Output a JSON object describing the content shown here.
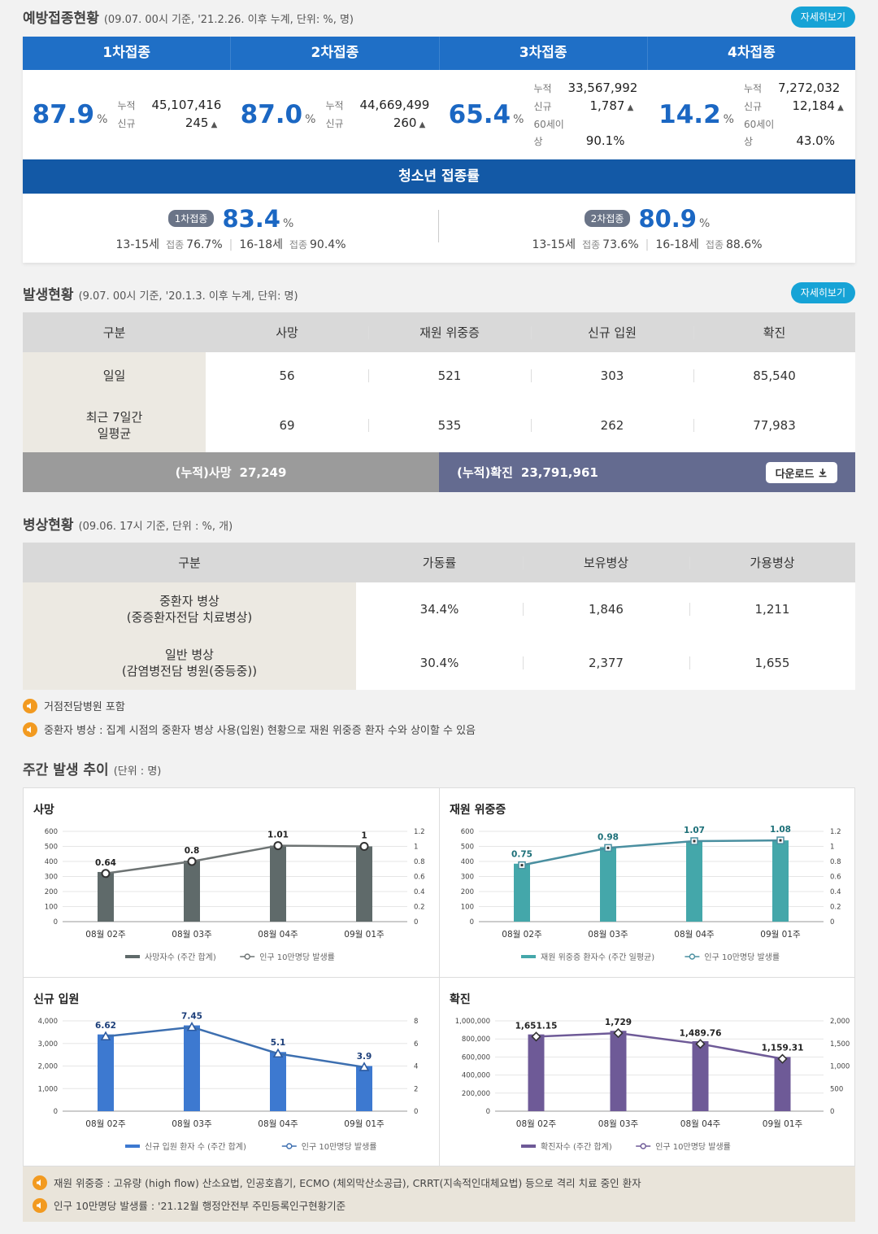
{
  "vaccination": {
    "title": "예방접종현황",
    "subtitle": "(09.07. 00시 기준, '21.2.26. 이후 누계, 단위: %, 명)",
    "detail_label": "자세히보기",
    "doses": [
      {
        "tab": "1차접종",
        "rate": "87.9",
        "unit": "%",
        "stats": [
          {
            "label": "누적",
            "value": "45,107,416",
            "up": false
          },
          {
            "label": "신규",
            "value": "245",
            "up": true
          }
        ]
      },
      {
        "tab": "2차접종",
        "rate": "87.0",
        "unit": "%",
        "stats": [
          {
            "label": "누적",
            "value": "44,669,499",
            "up": false
          },
          {
            "label": "신규",
            "value": "260",
            "up": true
          }
        ]
      },
      {
        "tab": "3차접종",
        "rate": "65.4",
        "unit": "%",
        "stats": [
          {
            "label": "누적",
            "value": "33,567,992",
            "up": false
          },
          {
            "label": "신규",
            "value": "1,787",
            "up": true
          },
          {
            "label": "60세이상",
            "value": "90.1%",
            "up": false
          }
        ]
      },
      {
        "tab": "4차접종",
        "rate": "14.2",
        "unit": "%",
        "stats": [
          {
            "label": "누적",
            "value": "7,272,032",
            "up": false
          },
          {
            "label": "신규",
            "value": "12,184",
            "up": true
          },
          {
            "label": "60세이상",
            "value": "43.0%",
            "up": false
          }
        ]
      }
    ],
    "teen": {
      "title": "청소년 접종률",
      "items": [
        {
          "pill": "1차접종",
          "rate": "83.4",
          "unit": "%",
          "a_age": "13-15세",
          "a_lbl": "접종",
          "a_val": "76.7%",
          "b_age": "16-18세",
          "b_lbl": "접종",
          "b_val": "90.4%"
        },
        {
          "pill": "2차접종",
          "rate": "80.9",
          "unit": "%",
          "a_age": "13-15세",
          "a_lbl": "접종",
          "a_val": "73.6%",
          "b_age": "16-18세",
          "b_lbl": "접종",
          "b_val": "88.6%"
        }
      ]
    }
  },
  "occurrence": {
    "title": "발생현황",
    "subtitle": "(9.07. 00시 기준, '20.1.3. 이후 누계, 단위: 명)",
    "detail_label": "자세히보기",
    "headers": [
      "구분",
      "사망",
      "재원 위중증",
      "신규 입원",
      "확진"
    ],
    "rows": [
      {
        "label": "일일",
        "cells": [
          "56",
          "521",
          "303",
          "85,540"
        ]
      },
      {
        "label": "최근 7일간\n일평균",
        "cells": [
          "69",
          "535",
          "262",
          "77,983"
        ]
      }
    ],
    "cum_death_label": "(누적)사망",
    "cum_death_value": "27,249",
    "cum_conf_label": "(누적)확진",
    "cum_conf_value": "23,791,961",
    "download_label": "다운로드"
  },
  "beds": {
    "title": "병상현황",
    "subtitle": "(09.06. 17시 기준, 단위 : %, 개)",
    "headers": [
      "구분",
      "가동률",
      "보유병상",
      "가용병상"
    ],
    "rows": [
      {
        "label": "중환자 병상\n(중증환자전담 치료병상)",
        "cells": [
          "34.4%",
          "1,846",
          "1,211"
        ]
      },
      {
        "label": "일반 병상\n(감염병전담 병원(중등중))",
        "cells": [
          "30.4%",
          "2,377",
          "1,655"
        ]
      }
    ],
    "notes": [
      "거점전담병원 포함",
      "중환자 병상 : 집계 시점의 중환자 병상 사용(입원) 현황으로 재원 위중증 환자 수와 상이할 수 있음"
    ]
  },
  "weekly": {
    "title": "주간 발생 추이",
    "subtitle": "(단위 : 명)",
    "footnotes": [
      "재원 위중증 : 고유량 (high flow) 산소요법, 인공호흡기, ECMO (체외막산소공급), CRRT(지속적인대체요법) 등으로 격리 치료 중인 환자",
      "인구 10만명당 발생률 : '21.12월 행정안전부 주민등록인구현황기준"
    ]
  },
  "chart_data": [
    {
      "type": "bar",
      "title": "사망",
      "categories": [
        "08월 02주",
        "08월 03주",
        "08월 04주",
        "09월 01주"
      ],
      "series": [
        {
          "name": "사망자수 (주간 합계)",
          "values": [
            330,
            405,
            505,
            500
          ]
        },
        {
          "name": "인구 10만명당 발생률",
          "values": [
            0.64,
            0.8,
            1.01,
            1
          ]
        }
      ],
      "y_ticks": [
        "600",
        "500",
        "400",
        "300",
        "200",
        "100",
        "0"
      ],
      "y2_ticks": [
        "1.2",
        "1",
        "0.8",
        "0.6",
        "0.4",
        "0.2",
        "0"
      ],
      "ylim": [
        0,
        600
      ],
      "y2lim": [
        0,
        1.2
      ],
      "bar_color": "#5f6a6a",
      "line_color": "#6d7373",
      "label_color": "#222",
      "marker": "circle"
    },
    {
      "type": "bar",
      "title": "재원 위중증",
      "categories": [
        "08월 02주",
        "08월 03주",
        "08월 04주",
        "09월 01주"
      ],
      "series": [
        {
          "name": "재원 위중증 환자수 (주간 일평균)",
          "values": [
            385,
            495,
            535,
            540
          ]
        },
        {
          "name": "인구 10만명당 발생률",
          "values": [
            0.75,
            0.98,
            1.07,
            1.08
          ]
        }
      ],
      "y_ticks": [
        "600",
        "500",
        "400",
        "300",
        "200",
        "100",
        "0"
      ],
      "y2_ticks": [
        "1.2",
        "1",
        "0.8",
        "0.6",
        "0.4",
        "0.2",
        "0"
      ],
      "ylim": [
        0,
        600
      ],
      "y2lim": [
        0,
        1.2
      ],
      "bar_color": "#44a7aa",
      "line_color": "#4a8fa0",
      "label_color": "#1c6f78",
      "marker": "square"
    },
    {
      "type": "bar",
      "title": "신규 입원",
      "categories": [
        "08월 02주",
        "08월 03주",
        "08월 04주",
        "09월 01주"
      ],
      "series": [
        {
          "name": "신규 입원 환자 수 (주간 합계)",
          "values": [
            3400,
            3800,
            2620,
            2000
          ]
        },
        {
          "name": "인구 10만명당 발생률",
          "values": [
            6.62,
            7.45,
            5.1,
            3.9
          ]
        }
      ],
      "y_ticks": [
        "4,000",
        "3,000",
        "2,000",
        "1,000",
        "0"
      ],
      "y2_ticks": [
        "8",
        "6",
        "4",
        "2",
        "0"
      ],
      "ylim": [
        0,
        4000
      ],
      "y2lim": [
        0,
        8
      ],
      "bar_color": "#3d79d0",
      "line_color": "#3d6fb0",
      "label_color": "#1d3f7a",
      "marker": "triangle"
    },
    {
      "type": "bar",
      "title": "확진",
      "categories": [
        "08월 02주",
        "08월 03주",
        "08월 04주",
        "09월 01주"
      ],
      "series": [
        {
          "name": "확진자수 (주간 합계)",
          "values": [
            850000,
            890000,
            775000,
            600000
          ]
        },
        {
          "name": "인구 10만명당 발생률",
          "values": [
            1651.15,
            1729,
            1489.76,
            1159.31
          ]
        }
      ],
      "data_labels": [
        "1,651.15",
        "1,729",
        "1,489.76",
        "1,159.31"
      ],
      "y_ticks": [
        "1,000,000",
        "800,000",
        "600,000",
        "400,000",
        "200,000",
        "0"
      ],
      "y2_ticks": [
        "2,000",
        "1,500",
        "1,000",
        "500",
        "0"
      ],
      "ylim": [
        0,
        1000000
      ],
      "y2lim": [
        0,
        2000
      ],
      "bar_color": "#6e5a97",
      "line_color": "#6e5a97",
      "label_color": "#222",
      "marker": "diamond"
    }
  ]
}
